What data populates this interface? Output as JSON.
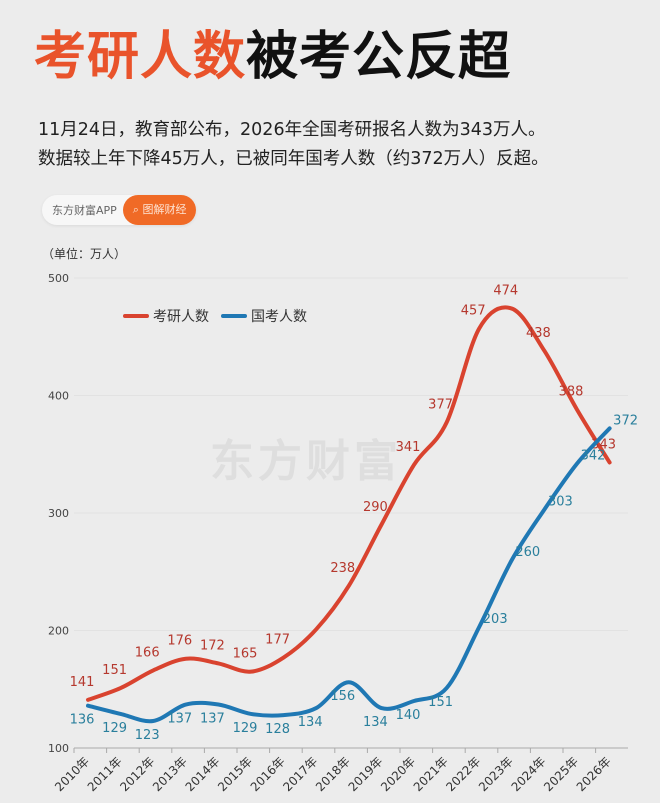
{
  "title": {
    "highlight": "考研人数",
    "rest": "被考公反超"
  },
  "description": [
    "11月24日，教育部公布，2026年全国考研报名人数为343万人。",
    "数据较上年下降45万人，已被同年国考人数（约372万人）反超。"
  ],
  "source_badge": {
    "source": "东方财富APP",
    "tag": "图解财经"
  },
  "watermark": "东方财富",
  "chart_data": {
    "type": "line",
    "unit_label": "（单位：万人）",
    "categories": [
      "2010年",
      "2011年",
      "2012年",
      "2013年",
      "2014年",
      "2015年",
      "2016年",
      "2017年",
      "2018年",
      "2019年",
      "2020年",
      "2021年",
      "2022年",
      "2023年",
      "2024年",
      "2025年",
      "2026年"
    ],
    "ylim": [
      100,
      500
    ],
    "yticks": [
      100,
      200,
      300,
      400,
      500
    ],
    "grid": true,
    "legend_position": "top-left",
    "series": [
      {
        "name": "考研人数",
        "color": "#d9432f",
        "values": [
          141,
          151,
          166,
          176,
          172,
          165,
          177,
          201,
          238,
          290,
          341,
          377,
          457,
          474,
          438,
          388,
          343
        ],
        "labels": [
          "141",
          "151",
          "166",
          "176",
          "172",
          "165",
          "177",
          "",
          "238",
          "290",
          "341",
          "377",
          "457",
          "474",
          "438",
          "388",
          "343"
        ]
      },
      {
        "name": "国考人数",
        "color": "#1f78b4",
        "values": [
          136,
          129,
          123,
          137,
          137,
          129,
          128,
          134,
          156,
          134,
          140,
          151,
          203,
          260,
          303,
          342,
          372
        ],
        "labels": [
          "136",
          "129",
          "123",
          "137",
          "137",
          "129",
          "128",
          "134",
          "156",
          "134",
          "140",
          "151",
          "203",
          "260",
          "303",
          "342",
          "372"
        ]
      }
    ]
  }
}
